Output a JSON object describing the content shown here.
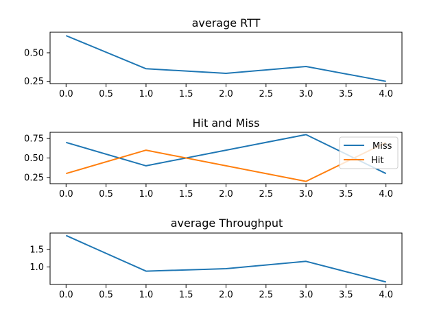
{
  "chart_data": [
    {
      "type": "line",
      "title": "average RTT",
      "xlabel": "",
      "ylabel": "",
      "xlim": [
        -0.2,
        4.2
      ],
      "ylim": [
        0.23,
        0.68
      ],
      "x_ticks": [
        "0.0",
        "0.5",
        "1.0",
        "1.5",
        "2.0",
        "2.5",
        "3.0",
        "3.5",
        "4.0"
      ],
      "y_ticks": [
        "0.25",
        "0.50"
      ],
      "x": [
        0,
        1,
        2,
        3,
        4
      ],
      "series": [
        {
          "color": "#1f77b4",
          "values": [
            0.65,
            0.36,
            0.32,
            0.38,
            0.25
          ]
        }
      ],
      "grid": false,
      "legend": null
    },
    {
      "type": "line",
      "title": "Hit and Miss",
      "xlabel": "",
      "ylabel": "",
      "xlim": [
        -0.2,
        4.2
      ],
      "ylim": [
        0.17,
        0.83
      ],
      "x_ticks": [
        "0.0",
        "0.5",
        "1.0",
        "1.5",
        "2.0",
        "2.5",
        "3.0",
        "3.5",
        "4.0"
      ],
      "y_ticks": [
        "0.25",
        "0.50",
        "0.75"
      ],
      "x": [
        0,
        1,
        2,
        3,
        4
      ],
      "series": [
        {
          "name": "Miss",
          "color": "#1f77b4",
          "values": [
            0.7,
            0.4,
            0.6,
            0.8,
            0.3
          ]
        },
        {
          "name": "Hit",
          "color": "#ff7f0e",
          "values": [
            0.3,
            0.6,
            0.4,
            0.2,
            0.7
          ]
        }
      ],
      "grid": false,
      "legend": "upper right"
    },
    {
      "type": "line",
      "title": "average Throughput",
      "xlabel": "",
      "ylabel": "",
      "xlim": [
        -0.2,
        4.2
      ],
      "ylim": [
        0.5,
        1.97
      ],
      "x_ticks": [
        "0.0",
        "0.5",
        "1.0",
        "1.5",
        "2.0",
        "2.5",
        "3.0",
        "3.5",
        "4.0"
      ],
      "y_ticks": [
        "1.0",
        "1.5"
      ],
      "x": [
        0,
        1,
        2,
        3,
        4
      ],
      "series": [
        {
          "color": "#1f77b4",
          "values": [
            1.9,
            0.88,
            0.95,
            1.16,
            0.57
          ]
        }
      ],
      "grid": false,
      "legend": null
    }
  ]
}
